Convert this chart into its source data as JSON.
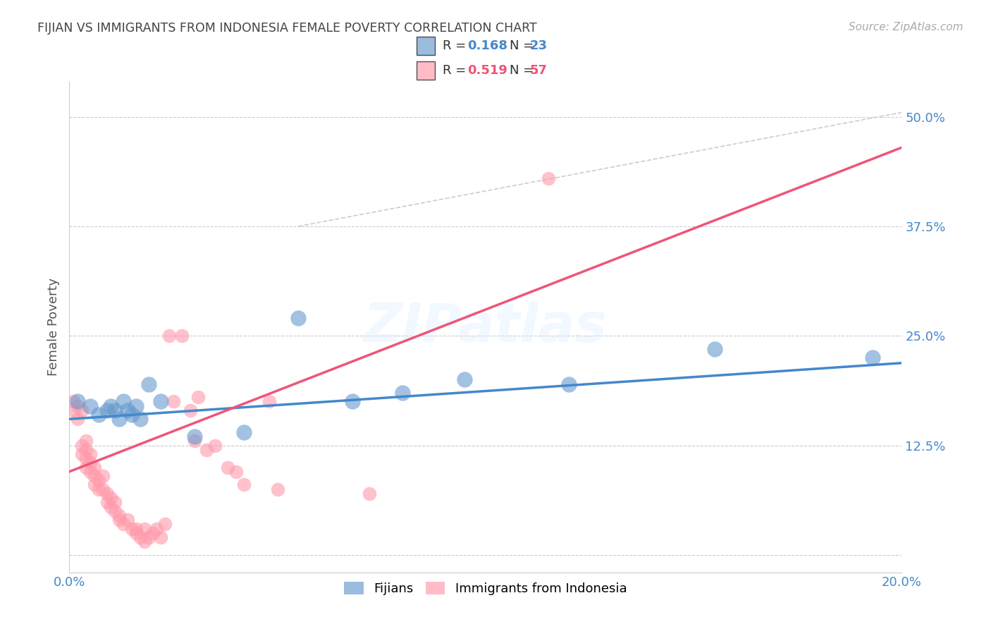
{
  "title": "FIJIAN VS IMMIGRANTS FROM INDONESIA FEMALE POVERTY CORRELATION CHART",
  "source": "Source: ZipAtlas.com",
  "ylabel": "Female Poverty",
  "xlim": [
    0.0,
    0.2
  ],
  "ylim": [
    -0.02,
    0.54
  ],
  "xticks": [
    0.0,
    0.04,
    0.08,
    0.12,
    0.16,
    0.2
  ],
  "ytick_positions": [
    0.0,
    0.125,
    0.25,
    0.375,
    0.5
  ],
  "ytick_labels": [
    "",
    "12.5%",
    "25.0%",
    "37.5%",
    "50.0%"
  ],
  "fijian_color": "#6699CC",
  "indonesia_color": "#FF99AA",
  "fijian_R": 0.168,
  "fijian_N": 23,
  "indonesia_R": 0.519,
  "indonesia_N": 57,
  "legend_label_1": "Fijians",
  "legend_label_2": "Immigrants from Indonesia",
  "watermark": "ZIPatlas",
  "fijian_x": [
    0.002,
    0.005,
    0.007,
    0.009,
    0.01,
    0.011,
    0.012,
    0.013,
    0.014,
    0.015,
    0.016,
    0.017,
    0.019,
    0.022,
    0.03,
    0.042,
    0.055,
    0.068,
    0.08,
    0.095,
    0.12,
    0.155,
    0.193
  ],
  "fijian_y": [
    0.175,
    0.17,
    0.16,
    0.165,
    0.17,
    0.165,
    0.155,
    0.175,
    0.165,
    0.16,
    0.17,
    0.155,
    0.195,
    0.175,
    0.135,
    0.14,
    0.27,
    0.175,
    0.185,
    0.2,
    0.195,
    0.235,
    0.225
  ],
  "indonesia_x": [
    0.001,
    0.001,
    0.002,
    0.002,
    0.003,
    0.003,
    0.003,
    0.004,
    0.004,
    0.004,
    0.004,
    0.005,
    0.005,
    0.005,
    0.006,
    0.006,
    0.006,
    0.007,
    0.007,
    0.008,
    0.008,
    0.009,
    0.009,
    0.01,
    0.01,
    0.011,
    0.011,
    0.012,
    0.012,
    0.013,
    0.014,
    0.015,
    0.016,
    0.016,
    0.017,
    0.018,
    0.018,
    0.019,
    0.02,
    0.021,
    0.022,
    0.023,
    0.024,
    0.025,
    0.027,
    0.029,
    0.03,
    0.031,
    0.033,
    0.035,
    0.038,
    0.04,
    0.042,
    0.048,
    0.05,
    0.072,
    0.115
  ],
  "indonesia_y": [
    0.175,
    0.165,
    0.17,
    0.155,
    0.165,
    0.125,
    0.115,
    0.12,
    0.13,
    0.11,
    0.1,
    0.115,
    0.105,
    0.095,
    0.09,
    0.1,
    0.08,
    0.085,
    0.075,
    0.09,
    0.075,
    0.07,
    0.06,
    0.065,
    0.055,
    0.06,
    0.05,
    0.045,
    0.04,
    0.035,
    0.04,
    0.03,
    0.03,
    0.025,
    0.02,
    0.03,
    0.015,
    0.02,
    0.025,
    0.03,
    0.02,
    0.035,
    0.25,
    0.175,
    0.25,
    0.165,
    0.13,
    0.18,
    0.12,
    0.125,
    0.1,
    0.095,
    0.08,
    0.175,
    0.075,
    0.07,
    0.43
  ],
  "background_color": "#FFFFFF",
  "grid_color": "#CCCCCC",
  "title_color": "#444444",
  "axis_color": "#4488CC",
  "fijian_trend_color": "#4488CC",
  "indonesia_trend_color": "#EE5577",
  "dashed_line_color": "#CCCCCC",
  "fijian_trend_slope": 0.32,
  "fijian_trend_intercept": 0.155,
  "indonesia_trend_slope": 1.85,
  "indonesia_trend_intercept": 0.095
}
